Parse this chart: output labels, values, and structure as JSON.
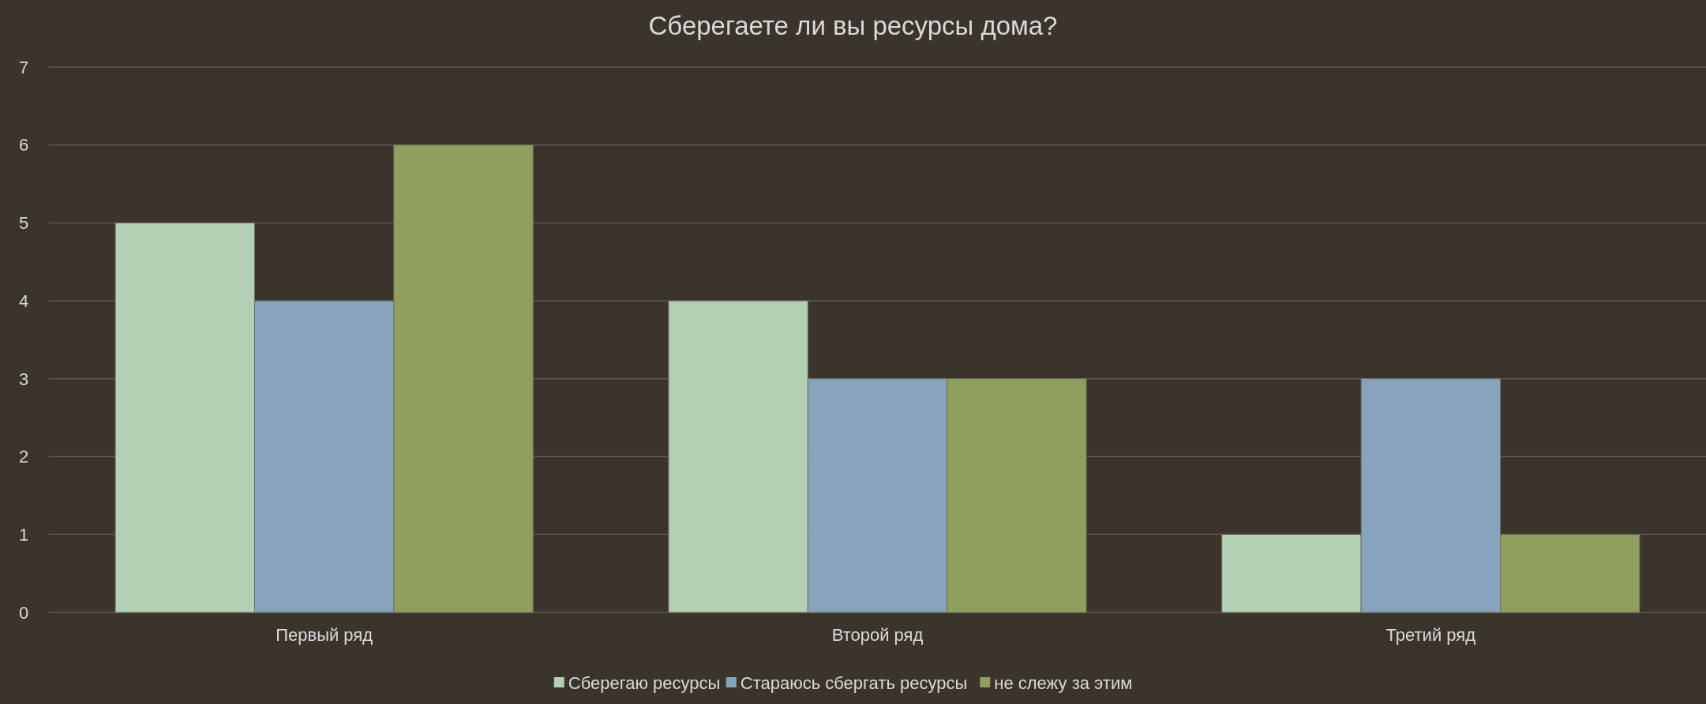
{
  "chart_data": {
    "type": "bar",
    "title": "Сберегаете ли вы ресурсы дома?",
    "categories": [
      "Первый ряд",
      "Второй ряд",
      "Третий ряд"
    ],
    "series": [
      {
        "name": "Сберегаю ресурсы",
        "color": "#b3cfb4",
        "values": [
          5,
          4,
          1
        ]
      },
      {
        "name": "Стараюсь сбергать ресурсы",
        "color": "#88a4bd",
        "values": [
          4,
          3,
          3
        ]
      },
      {
        "name": "не слежу за этим",
        "color": "#8f9f5d",
        "values": [
          6,
          3,
          1
        ]
      }
    ],
    "ylim": [
      0,
      7
    ],
    "yticks": [
      0,
      1,
      2,
      3,
      4,
      5,
      6,
      7
    ],
    "grid": "y",
    "legend": "bottom"
  }
}
